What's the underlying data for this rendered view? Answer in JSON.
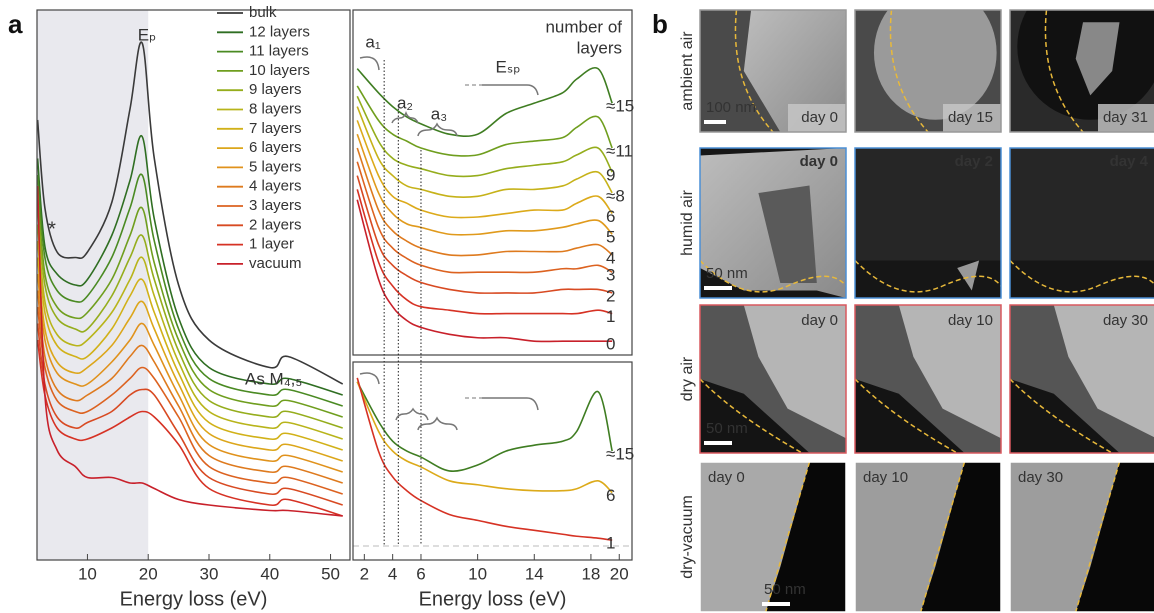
{
  "panel_a_label": "a",
  "panel_b_label": "b",
  "chart_data": [
    {
      "type": "line",
      "x_label": "Energy loss (eV)",
      "xlim": [
        1.7,
        53.2
      ],
      "ylim": [
        0,
        100
      ],
      "xticks": [
        10,
        20,
        30,
        40,
        50
      ],
      "shaded_range": [
        1.7,
        20
      ],
      "legend": "top right",
      "annotations": [
        "Eₚ",
        "As M₄,₅",
        "*"
      ],
      "x": [
        1.8,
        3,
        5,
        8,
        10,
        14,
        17,
        19,
        21,
        25,
        30,
        40,
        43,
        52
      ],
      "series": [
        {
          "name": "bulk",
          "color": "#3a3a3a",
          "values": [
            80,
            64,
            56,
            55,
            56,
            65,
            82,
            94,
            73,
            50,
            40,
            35,
            37,
            32
          ]
        },
        {
          "name": "12 layers",
          "color": "#2f6e22",
          "values": [
            73,
            57,
            52,
            50,
            51,
            59,
            69,
            77,
            62,
            44,
            35,
            32,
            33,
            30
          ]
        },
        {
          "name": "11 layers",
          "color": "#4a8a22",
          "values": [
            70,
            55,
            49,
            47,
            48,
            55,
            64,
            70,
            58,
            42,
            33,
            30,
            31,
            28
          ]
        },
        {
          "name": "10 layers",
          "color": "#6f9e1e",
          "values": [
            67,
            52,
            46,
            44,
            45,
            51,
            59,
            64,
            54,
            40,
            31,
            28,
            29,
            26
          ]
        },
        {
          "name": "9 layers",
          "color": "#95ad1c",
          "values": [
            64,
            50,
            44,
            42,
            42,
            48,
            55,
            59,
            51,
            38,
            29,
            26,
            27,
            24
          ]
        },
        {
          "name": "8 layers",
          "color": "#b8b41a",
          "values": [
            61,
            47,
            41,
            39,
            40,
            45,
            51,
            55,
            48,
            36,
            27,
            24,
            25,
            22
          ]
        },
        {
          "name": "7 layers",
          "color": "#d1b118",
          "values": [
            58,
            45,
            39,
            37,
            37,
            42,
            48,
            51,
            45,
            34,
            25,
            22,
            23,
            20
          ]
        },
        {
          "name": "6 layers",
          "color": "#dca61a",
          "values": [
            55,
            42,
            36,
            34,
            35,
            39,
            44,
            47,
            42,
            32,
            23,
            20,
            21,
            18
          ]
        },
        {
          "name": "5 layers",
          "color": "#e0921c",
          "values": [
            52,
            40,
            34,
            32,
            32,
            36,
            40,
            43,
            39,
            30,
            21,
            18,
            19,
            16
          ]
        },
        {
          "name": "4 layers",
          "color": "#de7a1e",
          "values": [
            49,
            37,
            31,
            29,
            30,
            33,
            37,
            39,
            36,
            28,
            19,
            16,
            17,
            14
          ]
        },
        {
          "name": "3 layers",
          "color": "#dc6220",
          "values": [
            46,
            35,
            29,
            27,
            27,
            30,
            33,
            35,
            33,
            26,
            17,
            14,
            15,
            12
          ]
        },
        {
          "name": "2 layers",
          "color": "#d84a22",
          "values": [
            43,
            32,
            26,
            24,
            25,
            27,
            30,
            31,
            30,
            23,
            15,
            12,
            13,
            10
          ]
        },
        {
          "name": "1 layer",
          "color": "#d63224",
          "values": [
            40,
            30,
            24,
            22,
            22,
            24,
            26,
            27,
            26,
            21,
            13,
            10,
            11,
            8
          ]
        },
        {
          "name": "vacuum",
          "color": "#c8202a",
          "values": [
            68,
            30,
            20,
            17,
            15,
            15,
            14,
            14,
            13,
            11,
            10,
            9,
            9,
            8
          ]
        }
      ]
    },
    {
      "type": "line",
      "title": [
        "number of",
        "layers"
      ],
      "title_color": "#4a8a22",
      "xlim": [
        1.2,
        20.9
      ],
      "ylim": [
        0,
        100
      ],
      "vlines": [
        3.4,
        4.4,
        6
      ],
      "annotations": [
        "a₁",
        "a₂",
        "a₃",
        "Eₛₚ"
      ],
      "x": [
        1.5,
        3,
        4,
        5,
        6,
        8,
        10,
        12,
        14,
        16,
        17,
        18.5,
        19.5
      ],
      "series": [
        {
          "name": "≈15",
          "color": "#3f7d22",
          "values": [
            83,
            76,
            72,
            69,
            67,
            64,
            64,
            70,
            73,
            76,
            80,
            83,
            73
          ]
        },
        {
          "name": "≈11",
          "color": "#6f9e1e",
          "values": [
            78,
            68,
            64,
            62,
            60,
            58,
            58,
            61,
            62,
            63,
            66,
            69,
            60
          ]
        },
        {
          "name": "9",
          "color": "#95ad1c",
          "values": [
            75,
            62,
            57,
            55,
            54,
            52,
            52,
            54,
            55,
            56,
            58,
            60,
            53
          ]
        },
        {
          "name": "≈8",
          "color": "#c6b219",
          "values": [
            72,
            57,
            52,
            49,
            48,
            46,
            46,
            48,
            48,
            49,
            51,
            53,
            47
          ]
        },
        {
          "name": "6",
          "color": "#dcaa1a",
          "values": [
            68,
            52,
            46,
            44,
            42,
            40,
            40,
            41,
            42,
            42,
            44,
            46,
            41
          ]
        },
        {
          "name": "5",
          "color": "#e09a1c",
          "values": [
            64,
            47,
            41,
            38,
            37,
            35,
            35,
            36,
            36,
            37,
            38,
            39,
            35
          ]
        },
        {
          "name": "4",
          "color": "#de7a1e",
          "values": [
            60,
            42,
            36,
            33,
            31,
            29,
            29,
            30,
            30,
            30,
            31,
            32,
            29
          ]
        },
        {
          "name": "3",
          "color": "#dc6220",
          "values": [
            56,
            37,
            31,
            28,
            26,
            24,
            24,
            24,
            24,
            25,
            25,
            26,
            24
          ]
        },
        {
          "name": "2",
          "color": "#d84a22",
          "values": [
            52,
            32,
            26,
            23,
            21,
            19,
            18,
            18,
            18,
            19,
            19,
            19,
            18
          ]
        },
        {
          "name": "1",
          "color": "#d63224",
          "values": [
            48,
            27,
            20,
            16,
            14,
            13,
            12,
            12,
            12,
            12,
            12,
            13,
            12
          ]
        },
        {
          "name": "0",
          "color": "#c8202a",
          "values": [
            45,
            22,
            14,
            10,
            8,
            6,
            5,
            5,
            4,
            4,
            4,
            4,
            4
          ]
        }
      ]
    },
    {
      "type": "line",
      "x_label": "Energy loss (eV)",
      "xlim": [
        1.2,
        20.9
      ],
      "ylim": [
        0,
        100
      ],
      "xticks": [
        2,
        4,
        6,
        10,
        14,
        18,
        20
      ],
      "x": [
        1.5,
        3,
        4,
        5,
        6,
        8,
        10,
        12,
        14,
        16,
        17,
        18.5,
        19.5
      ],
      "series": [
        {
          "name": "≈15",
          "color": "#3f7d22",
          "values": [
            90,
            70,
            60,
            55,
            52,
            45,
            48,
            55,
            58,
            60,
            65,
            85,
            55
          ]
        },
        {
          "name": "6",
          "color": "#dcaa1a",
          "values": [
            90,
            65,
            55,
            50,
            47,
            40,
            38,
            36,
            35,
            35,
            36,
            40,
            34
          ]
        },
        {
          "name": "1",
          "color": "#d63224",
          "values": [
            92,
            55,
            42,
            35,
            30,
            23,
            20,
            17,
            15,
            13,
            12,
            11,
            10
          ]
        }
      ]
    }
  ],
  "images": {
    "rows": [
      {
        "label": "ambient air",
        "scale_bar": "100 nm",
        "border": "#999999",
        "frames": [
          "day 0",
          "day 15",
          "day 31"
        ]
      },
      {
        "label": "humid air",
        "scale_bar": "50 nm",
        "border": "#4a8fd6",
        "frames": [
          "day 0",
          "day 2",
          "day 4"
        ]
      },
      {
        "label": "dry air",
        "scale_bar": "50 nm",
        "border": "#d9585f",
        "frames": [
          "day 0",
          "day 10",
          "day 30"
        ]
      },
      {
        "label": "dry-vacuum",
        "scale_bar": "50 nm",
        "border": "#ffffff",
        "frames": [
          "day 0",
          "day 10",
          "day 30"
        ]
      }
    ]
  }
}
